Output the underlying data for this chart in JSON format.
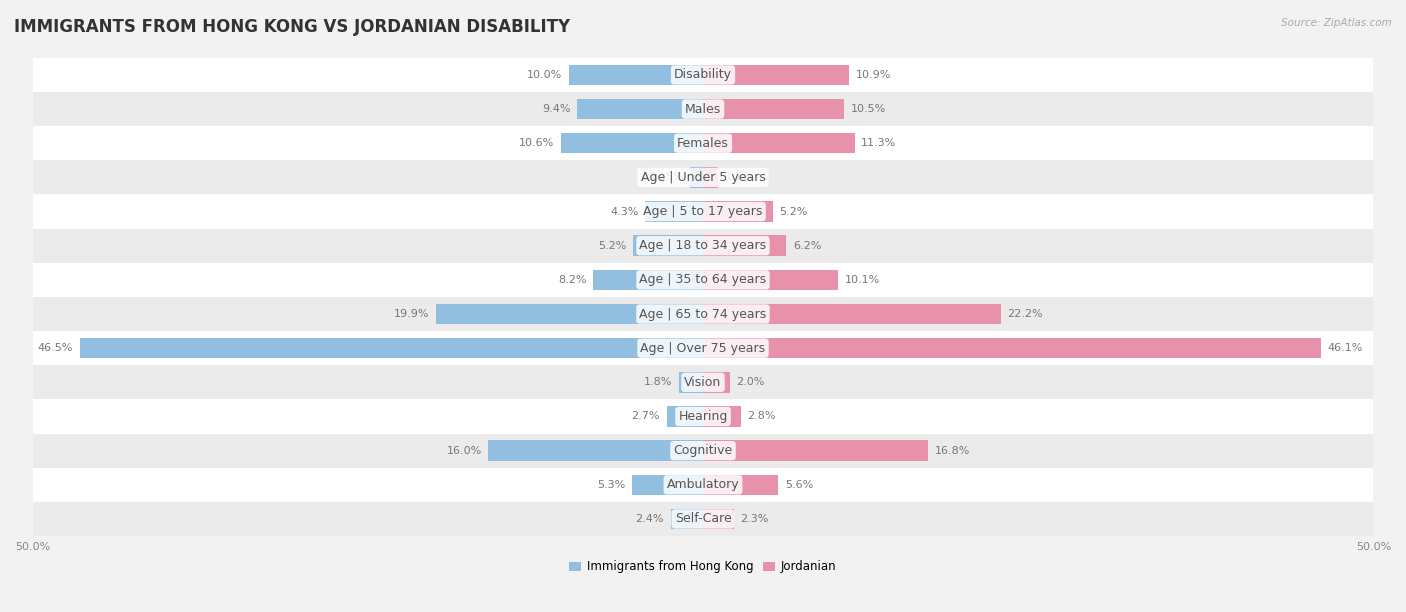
{
  "title": "IMMIGRANTS FROM HONG KONG VS JORDANIAN DISABILITY",
  "source": "Source: ZipAtlas.com",
  "categories": [
    "Disability",
    "Males",
    "Females",
    "Age | Under 5 years",
    "Age | 5 to 17 years",
    "Age | 18 to 34 years",
    "Age | 35 to 64 years",
    "Age | 65 to 74 years",
    "Age | Over 75 years",
    "Vision",
    "Hearing",
    "Cognitive",
    "Ambulatory",
    "Self-Care"
  ],
  "left_values": [
    10.0,
    9.4,
    10.6,
    0.95,
    4.3,
    5.2,
    8.2,
    19.9,
    46.5,
    1.8,
    2.7,
    16.0,
    5.3,
    2.4
  ],
  "right_values": [
    10.9,
    10.5,
    11.3,
    1.1,
    5.2,
    6.2,
    10.1,
    22.2,
    46.1,
    2.0,
    2.8,
    16.8,
    5.6,
    2.3
  ],
  "left_color": "#92bfdf",
  "right_color": "#e891aa",
  "background_color": "#f2f2f2",
  "bar_bg_light": "#ffffff",
  "bar_bg_dark": "#ebebeb",
  "axis_max": 50.0,
  "legend_left": "Immigrants from Hong Kong",
  "legend_right": "Jordanian",
  "title_fontsize": 12,
  "label_fontsize": 9,
  "value_fontsize": 8
}
